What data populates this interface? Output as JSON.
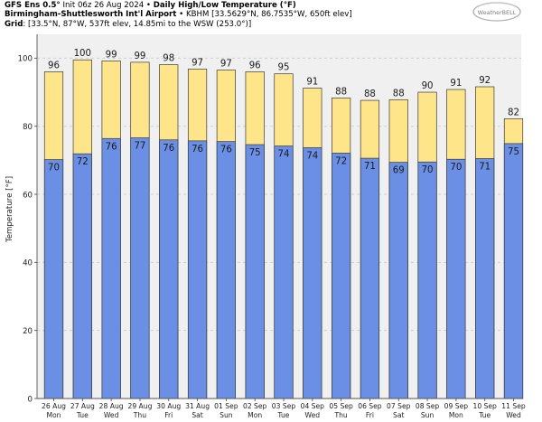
{
  "header": {
    "model": "GFS Ens 0.5°",
    "init": "Init 06z 26 Aug 2024",
    "product": "Daily High/Low Temperature (°F)",
    "station_name": "Birmingham-Shuttlesworth Int'l Airport",
    "station_meta": "KBHM [33.5629°N, 86.7535°W, 650ft elev]",
    "grid_label": "Grid",
    "grid_meta": "[33.5°N, 87°W, 537ft elev, 14.85mi to the WSW (253.0°)]",
    "separator": "•"
  },
  "logo": {
    "text": "WeatherBELL"
  },
  "colors": {
    "high_bar": "#ffe58a",
    "low_bar": "#6a8fe5",
    "bar_edge": "#3a3a3a",
    "plot_bg": "#f0f0f0",
    "grid": "#d0d0d0"
  },
  "chart_data": {
    "type": "bar",
    "ylabel": "Temperature [°F]",
    "ylim": [
      0,
      107
    ],
    "yticks": [
      0,
      20,
      40,
      60,
      80,
      100
    ],
    "grid": true,
    "categories": [
      "26 Aug Mon",
      "27 Aug Tue",
      "28 Aug Wed",
      "29 Aug Thu",
      "30 Aug Fri",
      "31 Aug Sat",
      "01 Sep Sun",
      "02 Sep Mon",
      "03 Sep Tue",
      "04 Sep Wed",
      "05 Sep Thu",
      "06 Sep Fri",
      "07 Sep Sat",
      "08 Sep Sun",
      "09 Sep Mon",
      "10 Sep Tue",
      "11 Sep Wed"
    ],
    "date_labels": [
      "26 Aug",
      "27 Aug",
      "28 Aug",
      "29 Aug",
      "30 Aug",
      "31 Aug",
      "01 Sep",
      "02 Sep",
      "03 Sep",
      "04 Sep",
      "05 Sep",
      "06 Sep",
      "07 Sep",
      "08 Sep",
      "09 Sep",
      "10 Sep",
      "11 Sep"
    ],
    "day_labels": [
      "Mon",
      "Tue",
      "Wed",
      "Thu",
      "Fri",
      "Sat",
      "Sun",
      "Mon",
      "Tue",
      "Wed",
      "Thu",
      "Fri",
      "Sat",
      "Sun",
      "Mon",
      "Tue",
      "Wed"
    ],
    "series": [
      {
        "name": "High",
        "values": [
          96,
          100,
          99,
          99,
          98,
          97,
          97,
          96,
          95,
          91,
          88,
          88,
          88,
          90,
          91,
          92,
          82
        ]
      },
      {
        "name": "Low",
        "values": [
          70,
          72,
          76,
          77,
          76,
          76,
          76,
          75,
          74,
          74,
          72,
          71,
          69,
          70,
          70,
          71,
          75
        ]
      }
    ],
    "series_heights": {
      "High": [
        96.0,
        99.5,
        99.2,
        98.8,
        98.1,
        96.8,
        96.5,
        96.0,
        95.4,
        91.2,
        88.3,
        87.6,
        87.8,
        90.0,
        90.8,
        91.6,
        82.2
      ],
      "Low": [
        70.2,
        71.9,
        76.4,
        76.6,
        76.0,
        75.7,
        75.5,
        74.6,
        74.2,
        73.7,
        72.1,
        70.6,
        69.4,
        69.5,
        70.3,
        70.5,
        74.9
      ]
    }
  }
}
